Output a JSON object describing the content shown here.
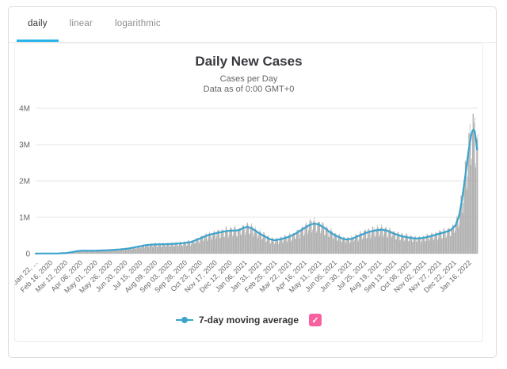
{
  "colors": {
    "tab_underline": "#2ab4ea",
    "bar_color": "#9f9f9f",
    "line_color": "#3aa4cc",
    "gridline_color": "#e6e6e6",
    "axis_label_color": "#666666",
    "checkbox_color": "#f8619f"
  },
  "tabs": {
    "items": [
      {
        "label": "daily",
        "active": true
      },
      {
        "label": "linear",
        "active": false
      },
      {
        "label": "logarithmic",
        "active": false
      }
    ]
  },
  "chart_data": {
    "type": "bar",
    "title": "Daily New Cases",
    "subtitle_line1": "Cases per Day",
    "subtitle_line2": "Data as of 0:00 GMT+0",
    "ylabel_ticks": [
      "0",
      "1M",
      "2M",
      "3M",
      "4M"
    ],
    "ylim": [
      0,
      4000000
    ],
    "grid": true,
    "legend_position": "bottom",
    "x_tick_interval_days": 25,
    "x_total_days": 739,
    "x_tick_labels": [
      "Jan 22, ...",
      "Feb 16, 2020",
      "Mar 12, 2020",
      "Apr 06, 2020",
      "May 01, 2020",
      "May 26, 2020",
      "Jun 20, 2020",
      "Jul 15, 2020",
      "Aug 09, 2020",
      "Sep 03, 2020",
      "Sep 28, 2020",
      "Oct 23, 2020",
      "Nov 17, 2020",
      "Dec 12, 2020",
      "Jan 06, 2021",
      "Jan 31, 2021",
      "Feb 25, 2021",
      "Mar 22, 2021",
      "Apr 16, 2021",
      "May 11, 2021",
      "Jun 05, 2021",
      "Jun 30, 2021",
      "Jul 25, 2021",
      "Aug 19, 2021",
      "Sep 13, 2021",
      "Oct 08, 2021",
      "Nov 02, 2021",
      "Nov 27, 2021",
      "Dec 22, 2021",
      "Jan 16, 2022"
    ],
    "series": [
      {
        "name": "Daily New Cases",
        "type": "bar",
        "note": "daily bars oscillate weekly around the 7-day moving average",
        "weekly_factors": [
          0.72,
          0.8,
          1.02,
          1.12,
          1.15,
          1.1,
          1.05
        ],
        "max_bar_value": 3850000
      },
      {
        "name": "7-day moving average",
        "type": "line",
        "points_day_value": [
          [
            0,
            3000
          ],
          [
            20,
            5000
          ],
          [
            35,
            4000
          ],
          [
            50,
            15000
          ],
          [
            60,
            40000
          ],
          [
            70,
            72000
          ],
          [
            80,
            82000
          ],
          [
            95,
            80000
          ],
          [
            110,
            87000
          ],
          [
            125,
            98000
          ],
          [
            140,
            115000
          ],
          [
            155,
            140000
          ],
          [
            170,
            190000
          ],
          [
            185,
            235000
          ],
          [
            200,
            255000
          ],
          [
            215,
            258000
          ],
          [
            230,
            268000
          ],
          [
            245,
            288000
          ],
          [
            260,
            320000
          ],
          [
            275,
            420000
          ],
          [
            290,
            520000
          ],
          [
            305,
            575000
          ],
          [
            320,
            625000
          ],
          [
            332,
            635000
          ],
          [
            340,
            645000
          ],
          [
            348,
            715000
          ],
          [
            354,
            737000
          ],
          [
            362,
            690000
          ],
          [
            372,
            580000
          ],
          [
            382,
            480000
          ],
          [
            392,
            395000
          ],
          [
            400,
            368000
          ],
          [
            410,
            398000
          ],
          [
            422,
            455000
          ],
          [
            435,
            555000
          ],
          [
            448,
            690000
          ],
          [
            458,
            790000
          ],
          [
            465,
            825000
          ],
          [
            472,
            810000
          ],
          [
            482,
            720000
          ],
          [
            492,
            590000
          ],
          [
            502,
            490000
          ],
          [
            512,
            420000
          ],
          [
            520,
            388000
          ],
          [
            530,
            415000
          ],
          [
            542,
            505000
          ],
          [
            555,
            590000
          ],
          [
            568,
            640000
          ],
          [
            578,
            662000
          ],
          [
            588,
            630000
          ],
          [
            600,
            545000
          ],
          [
            612,
            480000
          ],
          [
            625,
            438000
          ],
          [
            637,
            415000
          ],
          [
            648,
            432000
          ],
          [
            660,
            478000
          ],
          [
            672,
            535000
          ],
          [
            684,
            590000
          ],
          [
            694,
            650000
          ],
          [
            702,
            780000
          ],
          [
            708,
            1050000
          ],
          [
            713,
            1500000
          ],
          [
            718,
            2100000
          ],
          [
            723,
            2750000
          ],
          [
            728,
            3250000
          ],
          [
            731,
            3430000
          ],
          [
            734,
            3370000
          ],
          [
            737,
            3050000
          ],
          [
            739,
            2680000
          ]
        ]
      }
    ],
    "legend": {
      "label": "7-day moving average",
      "checked": true,
      "checkbox_glyph": "✓"
    }
  }
}
